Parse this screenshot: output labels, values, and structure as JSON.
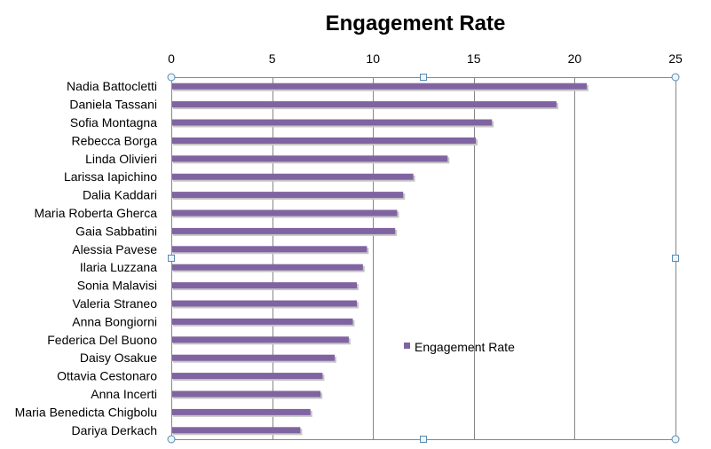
{
  "chart_data": {
    "type": "bar",
    "orientation": "horizontal",
    "title": "Engagement Rate",
    "xlabel": "",
    "ylabel": "",
    "xlim": [
      0,
      25
    ],
    "x_ticks": [
      0,
      5,
      10,
      15,
      20,
      25
    ],
    "grid": true,
    "legend_position": "right",
    "categories": [
      "Nadia Battocletti",
      "Daniela Tassani",
      "Sofia Montagna",
      "Rebecca Borga",
      "Linda Olivieri",
      "Larissa Iapichino",
      "Dalia Kaddari",
      "Maria Roberta Gherca",
      "Gaia Sabbatini",
      "Alessia Pavese",
      "Ilaria Luzzana",
      "Sonia Malavisi",
      "Valeria Straneo",
      "Anna Bongiorni",
      "Federica Del Buono",
      "Daisy Osakue",
      "Ottavia Cestonaro",
      "Anna Incerti",
      "Maria Benedicta Chigbolu",
      "Dariya Derkach"
    ],
    "series": [
      {
        "name": "Engagement Rate",
        "color": "#8064a2",
        "values": [
          20.6,
          19.1,
          15.9,
          15.1,
          13.7,
          12.0,
          11.5,
          11.2,
          11.1,
          9.7,
          9.5,
          9.2,
          9.2,
          9.0,
          8.8,
          8.1,
          7.5,
          7.4,
          6.9,
          6.4
        ]
      }
    ]
  },
  "colors": {
    "bar": "#8064a2",
    "bar_shadow": "#c6c6c6",
    "grid": "#868686",
    "axis": "#868686",
    "handle": "#5b8bb0"
  }
}
